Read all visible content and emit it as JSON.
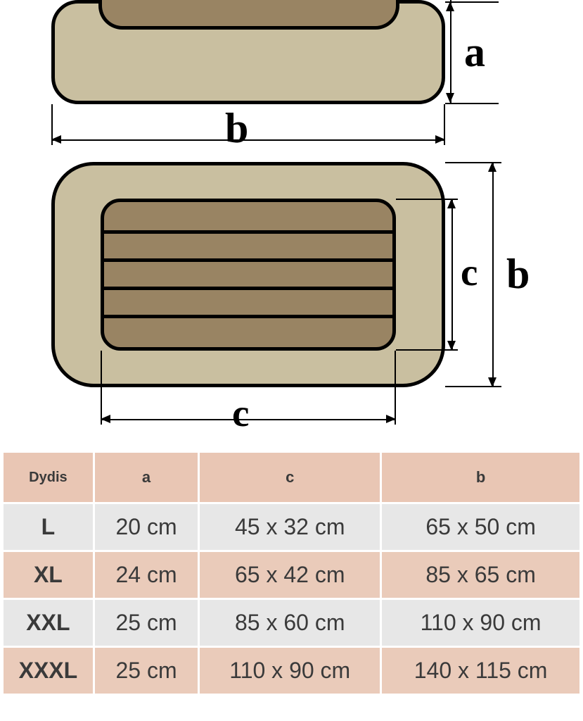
{
  "diagram": {
    "side_view": {
      "body_color": "#c9bfa0",
      "inner_color": "#998463",
      "stroke": "#000000",
      "stroke_width": 5,
      "body_radius": 38,
      "inner_radius": 34
    },
    "top_view": {
      "body_color": "#c9bfa0",
      "inner_color": "#998463",
      "stroke": "#000000",
      "stroke_width": 5,
      "outer_radius": 60,
      "inner_radius": 28,
      "stripe_count": 4
    },
    "labels": {
      "a": "a",
      "b_side": "b",
      "b_top": "b",
      "c_right": "c",
      "c_bottom": "c"
    },
    "label_font": "Times New Roman",
    "label_weight": "bold",
    "label_size_large": 60,
    "label_size_small": 55
  },
  "table": {
    "header_bg": "#e9c6b4",
    "row_odd_bg": "#e7e7e7",
    "row_even_bg": "#eacbba",
    "border_color": "#ffffff",
    "columns": [
      "Dydis",
      "a",
      "c",
      "b"
    ],
    "rows": [
      {
        "dydis": "L",
        "a": "20 cm",
        "c": "45 x 32 cm",
        "b": "65 x 50 cm"
      },
      {
        "dydis": "XL",
        "a": "24 cm",
        "c": "65 x 42 cm",
        "b": "85 x 65 cm"
      },
      {
        "dydis": "XXL",
        "a": "25 cm",
        "c": "85 x 60 cm",
        "b": "110 x 90 cm"
      },
      {
        "dydis": "XXXL",
        "a": "25 cm",
        "c": "110 x 90 cm",
        "b": "140 x 115 cm"
      }
    ]
  }
}
